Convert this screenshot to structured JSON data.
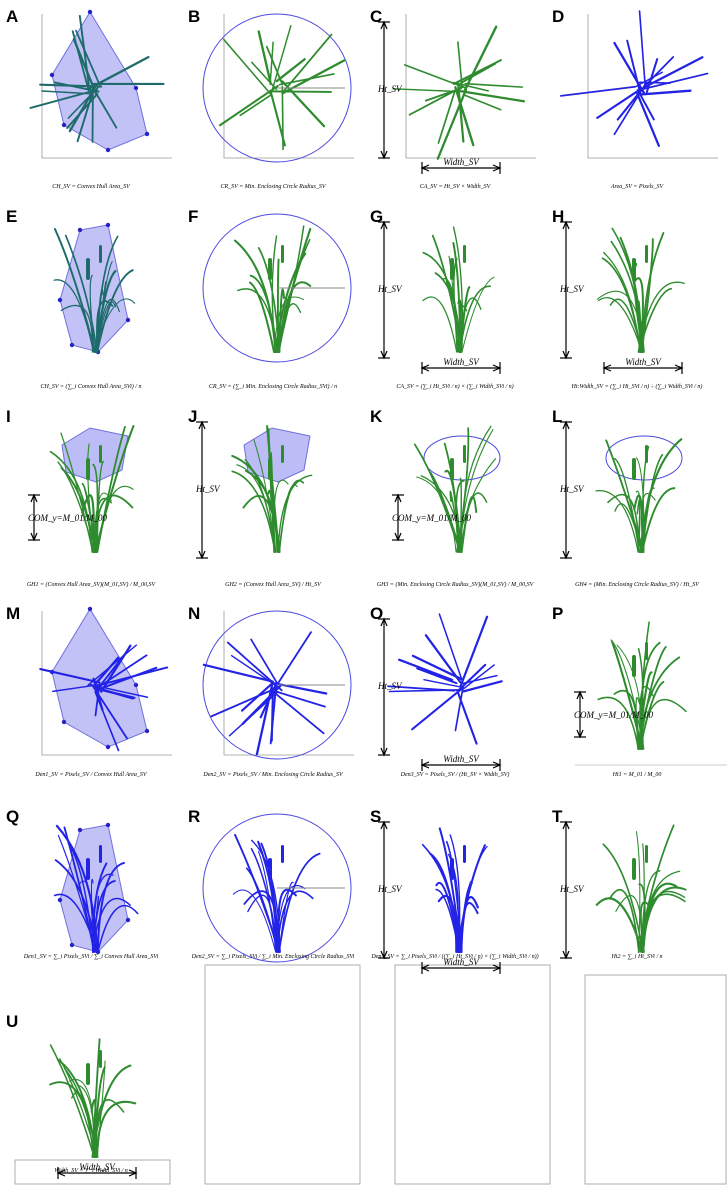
{
  "panels": [
    {
      "letter": "A",
      "caption": "CH_SV = Convex Hull Area_SV",
      "labels": []
    },
    {
      "letter": "B",
      "caption": "CR_SV = Min. Enclosing Circle Radius_SV",
      "labels": []
    },
    {
      "letter": "C",
      "caption": "CA_SV = Ht_SV × Width_SV",
      "labels": [
        "Ht_SV",
        "Width_SV"
      ]
    },
    {
      "letter": "D",
      "caption": "Area_SV = Pixels_SV",
      "labels": []
    },
    {
      "letter": "E",
      "caption": "CH_SV = (∑_i Convex Hull Area_SVi) / n",
      "labels": []
    },
    {
      "letter": "F",
      "caption": "CR_SV = (∑_i Min. Enclosing Circle Radius_SVi) / n",
      "labels": []
    },
    {
      "letter": "G",
      "caption": "CA_SV = (∑_i Ht_SVi / n) × (∑_i Width_SVi / n)",
      "labels": [
        "Ht_SV",
        "Width_SV"
      ]
    },
    {
      "letter": "H",
      "caption": "Ht:Width_SV = (∑_i Ht_SVi / n) ÷ (∑_i Width_SVi / n)",
      "labels": [
        "Ht_SV",
        "Width_SV"
      ]
    },
    {
      "letter": "I",
      "caption": "GH1 = (Convex Hull Area_SV)(M_01,SV) / M_00,SV",
      "labels": [
        "COM_y=M_01/M_00"
      ]
    },
    {
      "letter": "J",
      "caption": "GH2 = (Convex Hull Area_SV) / Ht_SV",
      "labels": [
        "Ht_SV"
      ]
    },
    {
      "letter": "K",
      "caption": "GH3 = (Min. Enclosing Circle Radius_SV)(M_01,SV) / M_00,SV",
      "labels": [
        "COM_y=M_01/M_00"
      ]
    },
    {
      "letter": "L",
      "caption": "GH4 = (Min. Enclosing Circle Radius_SV) / Ht_SV",
      "labels": [
        "Ht_SV"
      ]
    },
    {
      "letter": "M",
      "caption": "Den1_SV = Pixels_SV / Convex Hull Area_SV",
      "labels": []
    },
    {
      "letter": "N",
      "caption": "Den2_SV = Pixels_SV / Min. Enclosing Circle Radius_SV",
      "labels": []
    },
    {
      "letter": "O",
      "caption": "Den3_SV = Pixels_SV / (Ht_SV × Width_SV)",
      "labels": [
        "Ht_SV",
        "Width_SV"
      ]
    },
    {
      "letter": "P",
      "caption": "Ht1 = M_01 / M_00",
      "labels": [
        "COM_y=M_01/M_00"
      ]
    },
    {
      "letter": "Q",
      "caption": "Den1_SV = ∑_i Pixels_SVi / ∑_i Convex Hull Area_SVi",
      "labels": []
    },
    {
      "letter": "R",
      "caption": "Den2_SV = ∑_i Pixels_SVi / ∑_i Min. Enclosing Circle Radius_SVi",
      "labels": []
    },
    {
      "letter": "S",
      "caption": "Den3_SV = ∑_i Pixels_SVi / ((∑_i Ht_SVi / n) × (∑_i Width_SVi / n))",
      "labels": [
        "Ht_SV",
        "Width_SV"
      ]
    },
    {
      "letter": "T",
      "caption": "Ht2 = ∑_i Ht_SVi / n",
      "labels": [
        "Ht_SV"
      ]
    },
    {
      "letter": "U",
      "caption": "Width_SV = ∑_i Width_SVi / n",
      "labels": [
        "Width_SV"
      ]
    }
  ]
}
